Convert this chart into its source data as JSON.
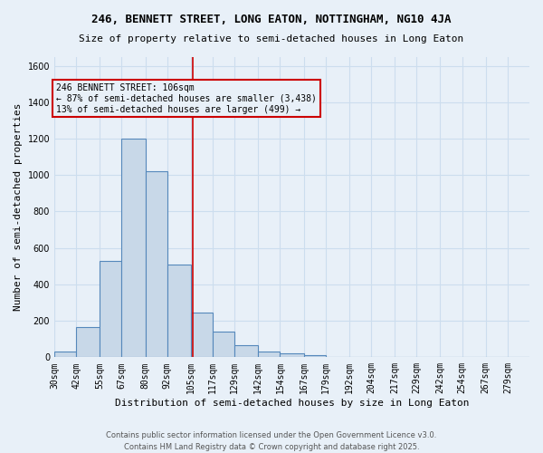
{
  "title": "246, BENNETT STREET, LONG EATON, NOTTINGHAM, NG10 4JA",
  "subtitle": "Size of property relative to semi-detached houses in Long Eaton",
  "xlabel": "Distribution of semi-detached houses by size in Long Eaton",
  "ylabel": "Number of semi-detached properties",
  "bin_labels": [
    "30sqm",
    "42sqm",
    "55sqm",
    "67sqm",
    "80sqm",
    "92sqm",
    "105sqm",
    "117sqm",
    "129sqm",
    "142sqm",
    "154sqm",
    "167sqm",
    "179sqm",
    "192sqm",
    "204sqm",
    "217sqm",
    "229sqm",
    "242sqm",
    "254sqm",
    "267sqm",
    "279sqm"
  ],
  "bin_edges": [
    30,
    42,
    55,
    67,
    80,
    92,
    105,
    117,
    129,
    142,
    154,
    167,
    179,
    192,
    204,
    217,
    229,
    242,
    254,
    267,
    279,
    291
  ],
  "bar_heights": [
    30,
    165,
    530,
    1200,
    1020,
    510,
    245,
    140,
    65,
    30,
    20,
    10,
    0,
    0,
    0,
    0,
    0,
    0,
    0,
    0,
    0
  ],
  "bar_color": "#c8d8e8",
  "bar_edge_color": "#5588bb",
  "grid_color": "#ccddee",
  "background_color": "#e8f0f8",
  "red_line_x": 106,
  "annotation_text": "246 BENNETT STREET: 106sqm\n← 87% of semi-detached houses are smaller (3,438)\n13% of semi-detached houses are larger (499) →",
  "annotation_box_color": "#cc0000",
  "ylim": [
    0,
    1650
  ],
  "yticks": [
    0,
    200,
    400,
    600,
    800,
    1000,
    1200,
    1400,
    1600
  ],
  "footer1": "Contains HM Land Registry data © Crown copyright and database right 2025.",
  "footer2": "Contains public sector information licensed under the Open Government Licence v3.0."
}
